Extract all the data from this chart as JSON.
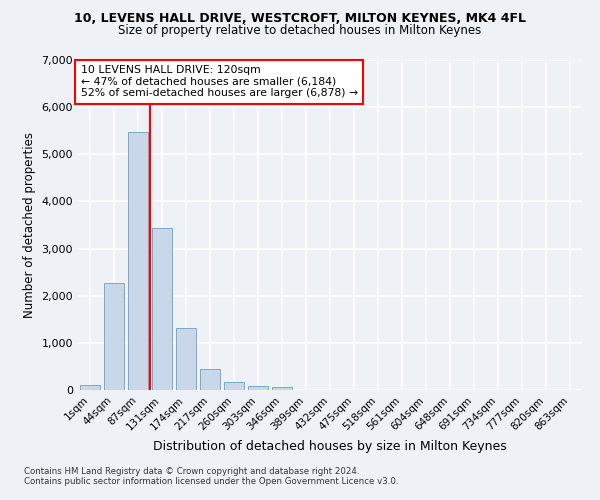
{
  "title1": "10, LEVENS HALL DRIVE, WESTCROFT, MILTON KEYNES, MK4 4FL",
  "title2": "Size of property relative to detached houses in Milton Keynes",
  "xlabel": "Distribution of detached houses by size in Milton Keynes",
  "ylabel": "Number of detached properties",
  "footnote1": "Contains HM Land Registry data © Crown copyright and database right 2024.",
  "footnote2": "Contains public sector information licensed under the Open Government Licence v3.0.",
  "bar_labels": [
    "1sqm",
    "44sqm",
    "87sqm",
    "131sqm",
    "174sqm",
    "217sqm",
    "260sqm",
    "303sqm",
    "346sqm",
    "389sqm",
    "432sqm",
    "475sqm",
    "518sqm",
    "561sqm",
    "604sqm",
    "648sqm",
    "691sqm",
    "734sqm",
    "777sqm",
    "820sqm",
    "863sqm"
  ],
  "bar_values": [
    100,
    2280,
    5480,
    3430,
    1310,
    440,
    160,
    95,
    60,
    0,
    0,
    0,
    0,
    0,
    0,
    0,
    0,
    0,
    0,
    0,
    0
  ],
  "bar_color": "#c8d8e8",
  "bar_edge_color": "#7aaac8",
  "ylim": [
    0,
    7000
  ],
  "yticks": [
    0,
    1000,
    2000,
    3000,
    4000,
    5000,
    6000,
    7000
  ],
  "vline_color": "red",
  "annotation_text": "10 LEVENS HALL DRIVE: 120sqm\n← 47% of detached houses are smaller (6,184)\n52% of semi-detached houses are larger (6,878) →",
  "annotation_box_color": "white",
  "annotation_box_edge": "red",
  "bg_color": "#eef2f7",
  "grid_color": "white"
}
